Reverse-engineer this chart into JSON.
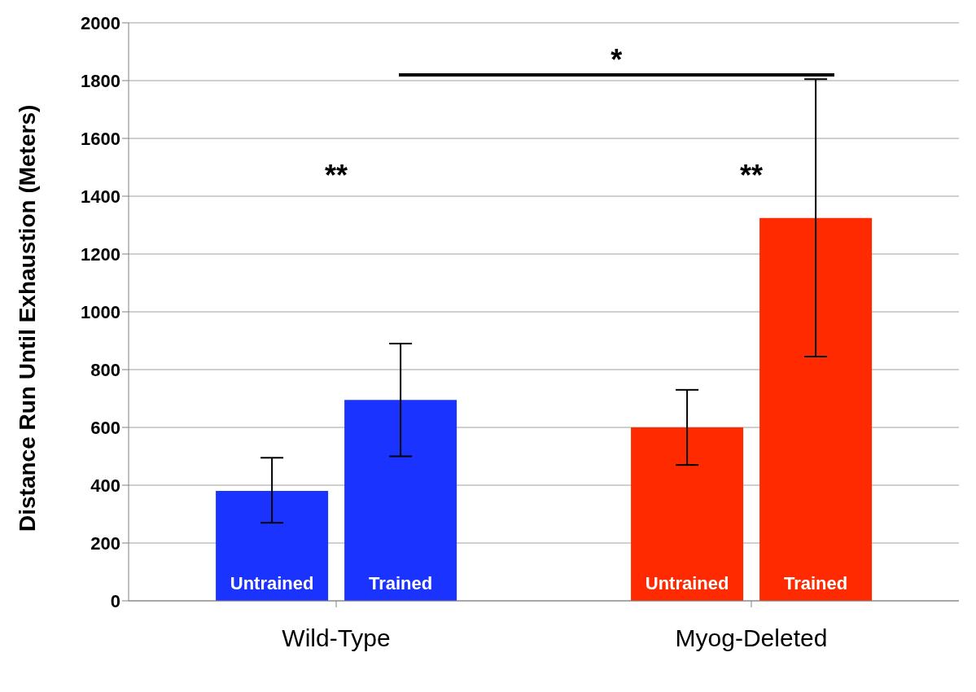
{
  "chart_data": {
    "type": "bar",
    "ylabel": "Distance Run Until Exhaustion  (Meters)",
    "categories": [
      "Wild-Type",
      "Myog-Deleted"
    ],
    "series": [
      {
        "name": "Untrained",
        "colors": [
          "#1a33ff",
          "#ff2a00"
        ],
        "values": [
          380,
          600
        ],
        "errors": [
          [
            270,
            495
          ],
          [
            470,
            730
          ]
        ]
      },
      {
        "name": "Trained",
        "colors": [
          "#1a33ff",
          "#ff2a00"
        ],
        "values": [
          695,
          1325
        ],
        "errors": [
          [
            500,
            890
          ],
          [
            845,
            1805
          ]
        ]
      }
    ],
    "ylim": [
      0,
      2000
    ],
    "yticks": [
      0,
      200,
      400,
      600,
      800,
      1000,
      1200,
      1400,
      1600,
      1800,
      2000
    ],
    "grid": "y",
    "legend": false,
    "annotations": [
      "**",
      "**",
      "*"
    ]
  }
}
